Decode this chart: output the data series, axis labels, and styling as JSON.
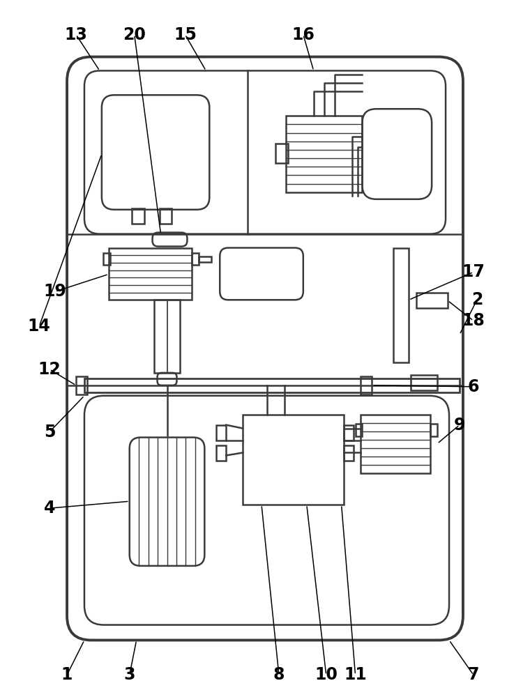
{
  "bg_color": "#ffffff",
  "line_color": "#3a3a3a",
  "lw": 1.8,
  "tlw": 2.8,
  "fig_width": 7.6,
  "fig_height": 10.0
}
